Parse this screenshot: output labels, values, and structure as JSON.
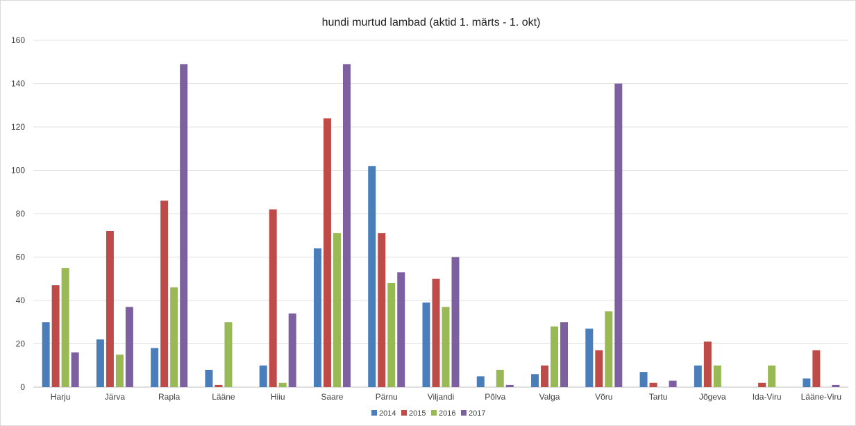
{
  "chart_data": {
    "type": "bar",
    "title": "hundi murtud lambad (aktid 1. märts - 1. okt)",
    "xlabel": "",
    "ylabel": "",
    "ylim": [
      0,
      160
    ],
    "yticks": [
      0,
      20,
      40,
      60,
      80,
      100,
      120,
      140,
      160
    ],
    "grid": true,
    "legend_position": "bottom",
    "categories": [
      "Harju",
      "Järva",
      "Rapla",
      "Lääne",
      "Hiiu",
      "Saare",
      "Pärnu",
      "Viljandi",
      "Põlva",
      "Valga",
      "Võru",
      "Tartu",
      "Jõgeva",
      "Ida-Viru",
      "Lääne-Viru"
    ],
    "series": [
      {
        "name": "2014",
        "color": "#4a7ebb",
        "values": [
          30,
          22,
          18,
          8,
          10,
          64,
          102,
          39,
          5,
          6,
          27,
          7,
          10,
          0,
          4
        ]
      },
      {
        "name": "2015",
        "color": "#be4b48",
        "values": [
          47,
          72,
          86,
          1,
          82,
          124,
          71,
          50,
          0,
          10,
          17,
          2,
          21,
          2,
          17
        ]
      },
      {
        "name": "2016",
        "color": "#98b954",
        "values": [
          55,
          15,
          46,
          30,
          2,
          71,
          48,
          37,
          8,
          28,
          35,
          0,
          10,
          10,
          0
        ]
      },
      {
        "name": "2017",
        "color": "#7d60a0",
        "values": [
          16,
          37,
          149,
          0,
          34,
          149,
          53,
          60,
          1,
          30,
          140,
          3,
          0,
          0,
          1
        ]
      }
    ]
  }
}
